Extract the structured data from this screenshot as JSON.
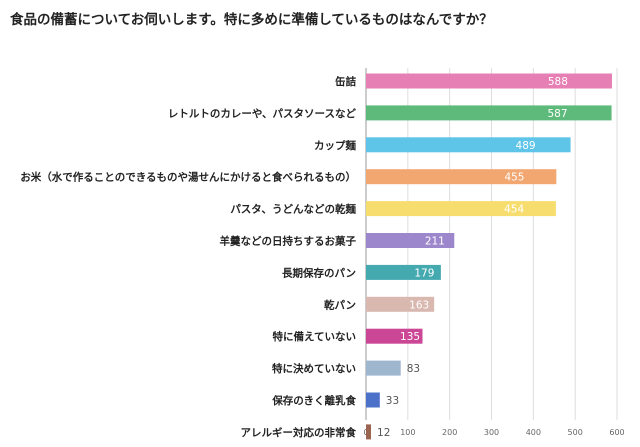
{
  "chart_data": {
    "type": "bar",
    "orientation": "horizontal",
    "title": "食品の備蓄についてお伺いします。特に多めに準備しているものはなんですか？",
    "categories": [
      "缶詰",
      "レトルトのカレーや、パスタソースなど",
      "カップ麺",
      "お米（水で作ることのできるものや湯せんにかけると食べられるもの）",
      "パスタ、うどんなどの乾麺",
      "羊羹などの日持ちするお菓子",
      "長期保存のパン",
      "乾パン",
      "特に備えていない",
      "特に決めていない",
      "保存のきく離乳食",
      "アレルギー対応の非常食"
    ],
    "values": [
      588,
      587,
      489,
      455,
      454,
      211,
      179,
      163,
      135,
      83,
      33,
      12
    ],
    "colors": [
      "#e57fb4",
      "#5dba7a",
      "#5ec4e8",
      "#f2a770",
      "#f7dd6e",
      "#9d87cc",
      "#45a9b0",
      "#d9b8b0",
      "#cc4696",
      "#9fb6cf",
      "#4c71c9",
      "#9a6451"
    ],
    "xlim": [
      0,
      600
    ],
    "xticks": [
      0,
      100,
      200,
      300,
      400,
      500,
      600
    ],
    "xlabel": "",
    "ylabel": "",
    "grid": true
  }
}
